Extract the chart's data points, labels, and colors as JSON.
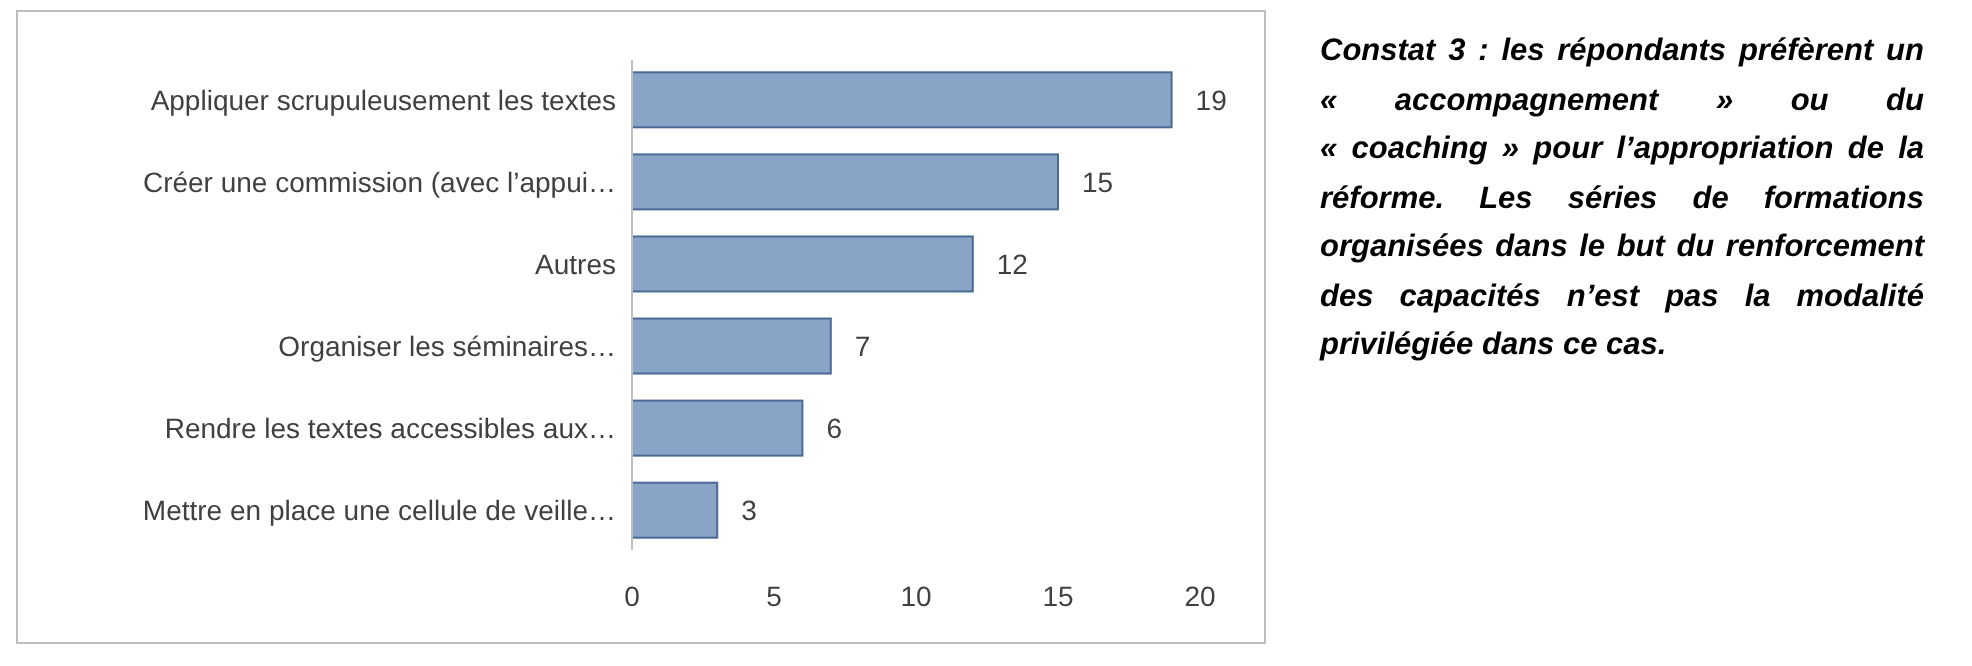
{
  "chart_data": {
    "type": "bar",
    "orientation": "horizontal",
    "categories": [
      "Appliquer scrupuleusement les textes",
      "Créer une commission (avec l’appui…",
      "Autres",
      "Organiser les séminaires…",
      "Rendre les textes accessibles aux…",
      "Mettre en place une cellule de veille…"
    ],
    "values": [
      19,
      15,
      12,
      7,
      6,
      3
    ],
    "color": "#8aa4c8",
    "xlim": [
      0,
      20
    ],
    "xticks": [
      0,
      5,
      10,
      15,
      20
    ],
    "data_labels": true,
    "grid": false,
    "annotations": [
      "Constat 3 : les répondants préfèrent un « accompagnement » ou du « coaching » pour l’appropriation de la réforme. Les séries de formations organisées dans le but du renforcement des capacités n’est pas la modalité privilégiée dans ce cas."
    ]
  }
}
